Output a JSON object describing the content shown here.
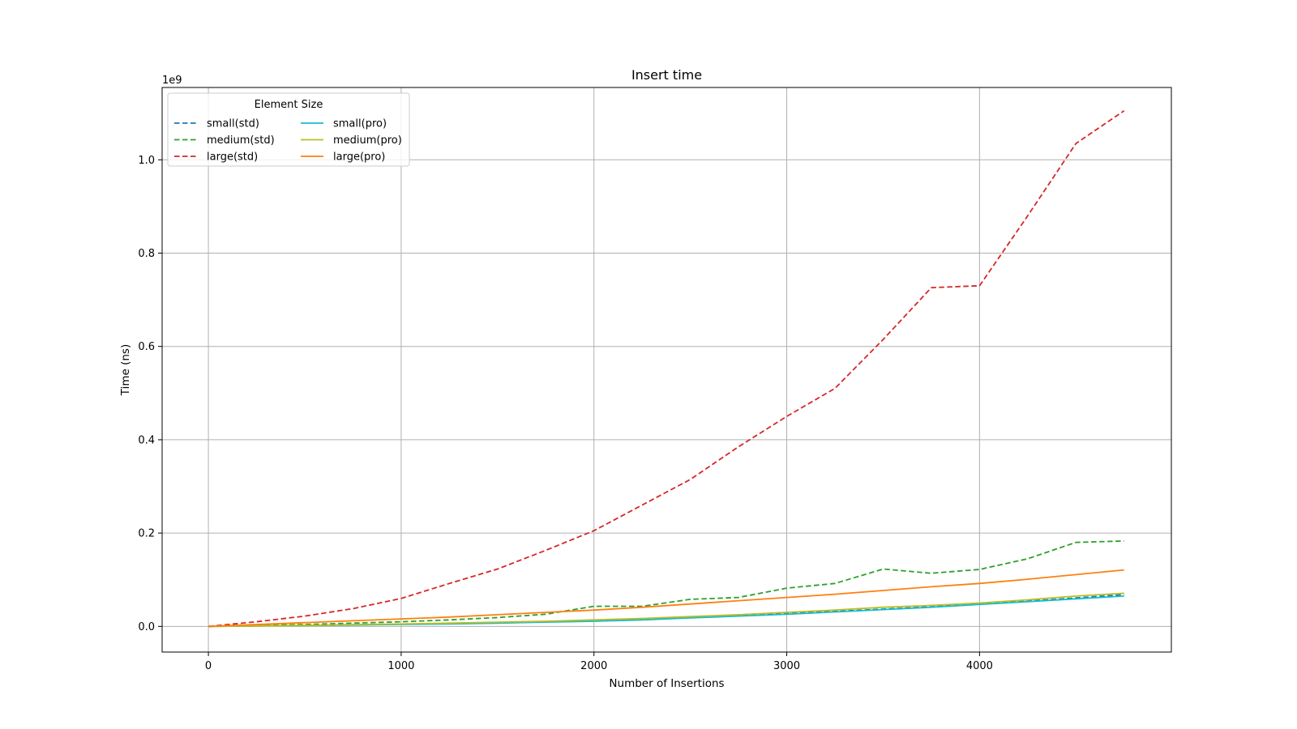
{
  "chart_data": {
    "type": "line",
    "title": "Insert time",
    "xlabel": "Number of Insertions",
    "ylabel": "Time (ns)",
    "y_offset_label": "1e9",
    "xlim": [
      -240,
      4995
    ],
    "ylim": [
      -0.055,
      1.155
    ],
    "xticks": [
      0,
      1000,
      2000,
      3000,
      4000
    ],
    "yticks": [
      0.0,
      0.2,
      0.4,
      0.6,
      0.8,
      1.0
    ],
    "xtick_labels": [
      "0",
      "1000",
      "2000",
      "3000",
      "4000"
    ],
    "ytick_labels": [
      "0.0",
      "0.2",
      "0.4",
      "0.6",
      "0.8",
      "1.0"
    ],
    "grid": true,
    "legend": {
      "title": "Element Size",
      "placement": "top-left",
      "columns": 2
    },
    "x": [
      0,
      250,
      500,
      750,
      1000,
      1250,
      1500,
      1750,
      2000,
      2250,
      2500,
      2750,
      3000,
      3250,
      3500,
      3750,
      4000,
      4250,
      4500,
      4750
    ],
    "series": [
      {
        "name": "small(std)",
        "color": "#1f77b4",
        "dash": true,
        "values": [
          0.0,
          0.001,
          0.002,
          0.003,
          0.005,
          0.006,
          0.008,
          0.01,
          0.013,
          0.016,
          0.019,
          0.023,
          0.028,
          0.032,
          0.037,
          0.042,
          0.048,
          0.054,
          0.061,
          0.068
        ]
      },
      {
        "name": "medium(std)",
        "color": "#2ca02c",
        "dash": true,
        "values": [
          0.0,
          0.002,
          0.004,
          0.007,
          0.01,
          0.014,
          0.019,
          0.026,
          0.043,
          0.043,
          0.058,
          0.062,
          0.082,
          0.092,
          0.123,
          0.114,
          0.122,
          0.145,
          0.18,
          0.183
        ]
      },
      {
        "name": "large(std)",
        "color": "#d62728",
        "dash": true,
        "values": [
          0.0,
          0.01,
          0.022,
          0.038,
          0.06,
          0.092,
          0.123,
          0.163,
          0.205,
          0.26,
          0.315,
          0.385,
          0.45,
          0.51,
          0.615,
          0.726,
          0.73,
          0.88,
          1.035,
          1.105
        ]
      },
      {
        "name": "small(pro)",
        "color": "#17becf",
        "dash": false,
        "values": [
          0.0,
          0.001,
          0.002,
          0.003,
          0.004,
          0.005,
          0.007,
          0.009,
          0.011,
          0.014,
          0.018,
          0.022,
          0.026,
          0.031,
          0.036,
          0.041,
          0.047,
          0.053,
          0.059,
          0.065
        ]
      },
      {
        "name": "medium(pro)",
        "color": "#bcbd22",
        "dash": false,
        "values": [
          0.0,
          0.001,
          0.002,
          0.004,
          0.005,
          0.007,
          0.009,
          0.011,
          0.014,
          0.017,
          0.021,
          0.025,
          0.03,
          0.035,
          0.041,
          0.045,
          0.05,
          0.057,
          0.065,
          0.071
        ]
      },
      {
        "name": "large(pro)",
        "color": "#ff7f0e",
        "dash": false,
        "values": [
          0.0,
          0.004,
          0.008,
          0.012,
          0.016,
          0.02,
          0.025,
          0.03,
          0.035,
          0.041,
          0.048,
          0.055,
          0.062,
          0.069,
          0.077,
          0.085,
          0.092,
          0.101,
          0.111,
          0.121
        ]
      }
    ]
  }
}
